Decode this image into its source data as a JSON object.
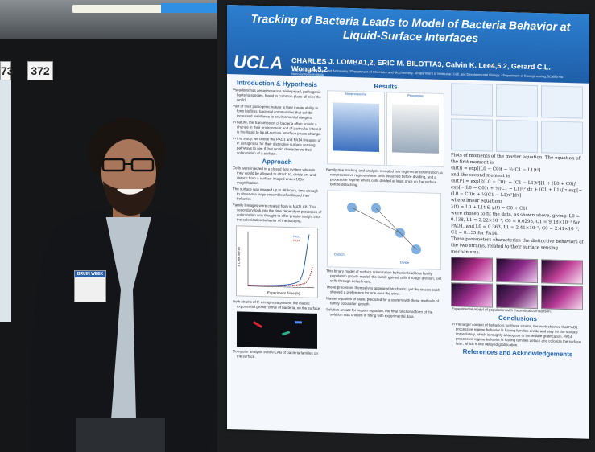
{
  "booth": {
    "number_left": "73",
    "number_right": "372"
  },
  "poster": {
    "title": "Tracking of Bacteria Leads to Model of Bacteria Behavior at Liquid-Surface Interfaces",
    "logo": "UCLA",
    "authors": "CHARLES J. LOMBA1,2, ERIC M. BILOTTA3, Calvin K. Lee4,5,2, Gerard C.L. Wong4,5,2",
    "affiliations": "1Department of Physics and Astronomy, 2Department of Chemistry and Biochemistry, 3Department of Molecular, Cell, and Developmental Biology, 4Department of Bioengineering, 5California NanoSystems Institute",
    "intro": {
      "heading": "Introduction & Hypothesis",
      "bullets": [
        "Pseudomonas aeruginosa is a widespread, pathogenic bacteria species, found in common place all over the world.",
        "Part of their pathogenic nature is their innate ability to form biofilms, bacterial communities that exhibit increased resistance to environmental dangers.",
        "In nature, the transmission of bacteria often entails a change in their environment and of particular interest is the liquid to liquid-surface interface phase change.",
        "In this study, we chose the PAO1 and PA14 lineages of P. aeruginosa for their distinctive surface sensing pathways to see if that would characterize their colonization of a surface."
      ]
    },
    "approach": {
      "heading": "Approach",
      "bullets": [
        "Cells were injected in a closed flow system wherein they would be allowed to attach to, divide on, and detach from a surface imaged under 100x magnification.",
        "The surface was imaged up to 48 hours, time enough to observe a large ensemble of cells and their behavior.",
        "Family lineages were created from in MATLAB. This secondary look into the time dependent processes of colonization was thought to offer greater insight into the colonization behavior of the bacteria."
      ]
    },
    "growth_chart": {
      "ylabel": "# Cells in FoV",
      "xlabel": "Experiment Time (h)",
      "legend": [
        "PAO1",
        "PA14"
      ]
    },
    "left_notes": [
      "Both strains of P. aeruginosa present the classic exponential growth curve of bacteria, on the surface.",
      "Computer analysis in MATLAB of bacteria families on the surface."
    ],
    "results": {
      "heading": "Results",
      "notes": [
        "Family tree tracking and analysis revealed two regimes of colonization, a nonprocessive regime where cells detached before dividing, and a processive regime where cells divided at least once on the surface before detaching.",
        "This binary model of surface colonization behavior lead to a family population growth model: the family gained cells through division, lost cells through detachment.",
        "These processes themselves appeared stochastic, yet the strains each showed a preference for one over the other.",
        "Master equation of state, predicted for a system with these methods of family population growth.",
        "Solution ansatz for master equation, the final functional form of the solution was chosen in fitting with experimental data."
      ],
      "labels": [
        "Nonprocessive",
        "Processive",
        "Detach",
        "Divide"
      ]
    },
    "right": {
      "plots_text": "Plots of moments of the master equation. The equation of the first moment is",
      "eq1": "⟨n(t)⟩ = exp[(L0 − C0)t − ½(C1 − L1)t²]",
      "and_text": "and the second moment is",
      "eq2": "⟨n(t)²⟩ = exp[2(L0 − C0)t − (C1 − L1)t²][1 + (L0 + C0)∫ exp[−(L0 − C0)τ + ½(C1 − L1)τ²]dτ + (C1 + L1)∫ τ exp[−(L0 − C0)τ + ½(C1 − L1)τ²]dτ]",
      "linear_text": "where linear equations",
      "eq3": "λ(t) = L0 + L1t  &  μ(t) = C0 + C1t",
      "fit_text": "were chosen to fit the data, as shown above, giving: L0 = 0.138, L1 = 2.22×10⁻³, C0 = 0.0295, C1 = 9.18×10⁻³ for PAO1, and L0 = 0.363, L1 = 2.41×10⁻², C0 = 2.41×10⁻², C1 = 0.135 for PA14.",
      "params_text": "These parameters characterize the distinctive behaviors of the two strains, related to their surface sensing mechanisms.",
      "heatmap_caption": "Experimental model of population with theoretical comparison.",
      "conclusions_heading": "Conclusions",
      "conclusions_text": "In the larger context of behaviors for these strains, the work showed that PAO1 processive regime behavior is having families divide and stay on the surface immediately, which is roughly analogous to immediate gratification. PA14 processive regime behavior is having families detach and colonize the surface later, which is like delayed gratification.",
      "references_heading": "References and Acknowledgements"
    }
  },
  "badge": {
    "header": "BRUIN WEEK",
    "name": ""
  },
  "colors": {
    "poster_blue": "#1f5ea8",
    "heading_blue": "#2163b2",
    "poster_bg": "#f4f7fb",
    "pao1": "#2a5db0",
    "pa14": "#c0262c"
  }
}
